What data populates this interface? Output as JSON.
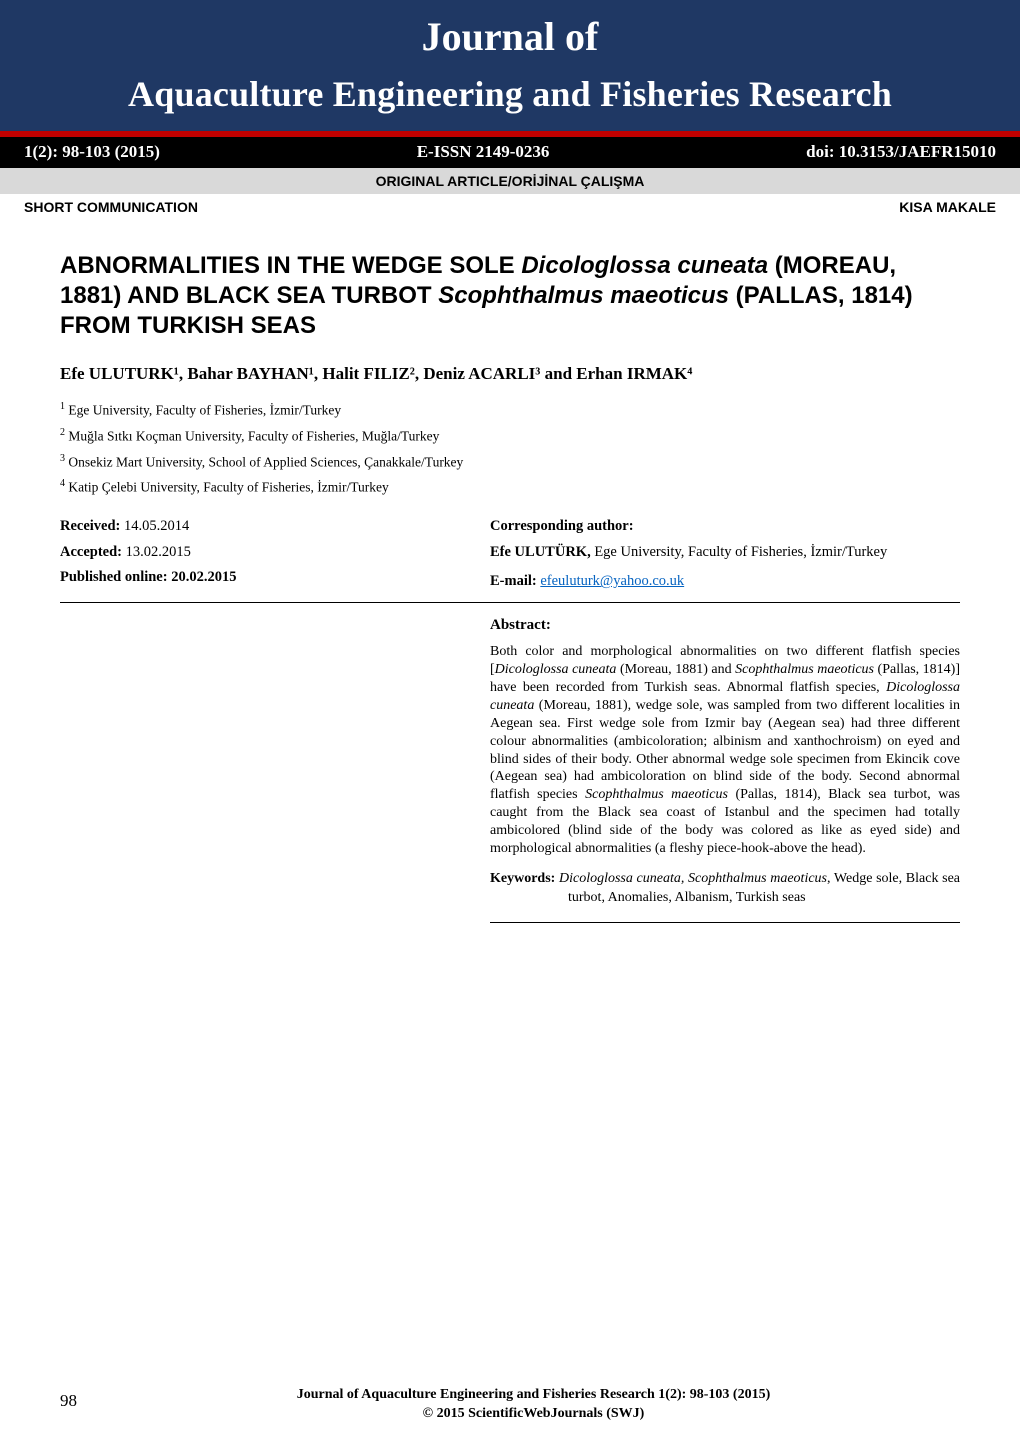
{
  "header": {
    "journal_of": "Journal of",
    "journal_name": "Aquaculture Engineering and Fisheries Research",
    "colors": {
      "banner_bg": "#1f3864",
      "banner_fg": "#ffffff",
      "rule": "#c00000",
      "blackbar_bg": "#000000",
      "graybar_bg": "#d9d9d9"
    }
  },
  "blackbar": {
    "issue": "1(2): 98-103 (2015)",
    "eissn": "E-ISSN 2149-0236",
    "doi": "doi: 10.3153/JAEFR15010"
  },
  "article_type": "ORIGINAL ARTICLE/ORİJİNAL ÇALIŞMA",
  "short_comm_left": "SHORT COMMUNICATION",
  "short_comm_right": "KISA MAKALE",
  "title_parts": {
    "p1": "ABNORMALITIES IN THE WEDGE SOLE ",
    "i1": "Dicologlossa cuneata",
    "p2": " (MOREAU, 1881) AND BLACK SEA TURBOT ",
    "i2": "Scophthalmus maeoticus",
    "p3": " (PALLAS, 1814) FROM TURKISH SEAS"
  },
  "authors": "Efe ULUTURK¹, Bahar BAYHAN¹, Halit FILIZ², Deniz ACARLI³ and Erhan IRMAK⁴",
  "affiliations": [
    {
      "n": "1",
      "text": " Ege University, Faculty of Fisheries, İzmir/Turkey"
    },
    {
      "n": "2",
      "text": " Muğla Sıtkı Koçman University, Faculty of Fisheries, Muğla/Turkey"
    },
    {
      "n": "3",
      "text": " Onsekiz Mart University, School of Applied Sciences, Çanakkale/Turkey"
    },
    {
      "n": "4",
      "text": " Katip Çelebi University, Faculty of Fisheries, İzmir/Turkey"
    }
  ],
  "dates": {
    "received_label": "Received: ",
    "received_value": "14.05.2014",
    "accepted_label": "Accepted: ",
    "accepted_value": "13.02.2015",
    "published_label": "Published online: 20.02.2015"
  },
  "corresponding": {
    "heading": "Corresponding author:",
    "name": "Efe ULUTÜRK,",
    "affil": " Ege University, Faculty of Fisheries, İzmir/Turkey",
    "email_label": "E-mail: ",
    "email": "efeuluturk@yahoo.co.uk"
  },
  "abstract": {
    "heading": "Abstract:",
    "body_parts": {
      "t1": "Both color and morphological abnormalities on two different flatfish species [",
      "i1": "Dicologlossa cuneata",
      "t2": " (Moreau, 1881) and ",
      "i2": "Scophthalmus maeoticus",
      "t3": " (Pallas, 1814)] have been recorded from Turkish seas. Abnormal flatfish species, ",
      "i3": "Dicologlossa cuneata",
      "t4": " (Moreau, 1881), wedge sole, was sampled from two different localities in Aegean sea. First wedge sole from Izmir bay (Aegean sea) had three different colour abnormalities (ambicoloration; albinism and xanthochroism) on eyed and blind sides of their body. Other abnormal wedge sole specimen from Ekincik cove (Aegean sea) had ambicoloration on blind side of the body. Second abnormal flatfish species ",
      "i4": "Scophthalmus maeoticus",
      "t5": " (Pallas, 1814), Black sea turbot, was caught from the Black sea coast of Istanbul and the specimen had totally ambicolored (blind side of the body was colored as like as eyed side) and morphological abnormalities (a fleshy piece-hook-above the head)."
    }
  },
  "keywords": {
    "label": "Keywords: ",
    "i1": "Dicologlossa cuneata, Scophthalmus maeoticus",
    "rest": ", Wedge sole, Black sea turbot, Anomalies, Albanism, Turkish seas"
  },
  "footer": {
    "page_num": "98",
    "line1": "Journal of Aquaculture Engineering and Fisheries Research 1(2): 98-103 (2015)",
    "line2": "© 2015 ScientificWebJournals (SWJ)"
  }
}
